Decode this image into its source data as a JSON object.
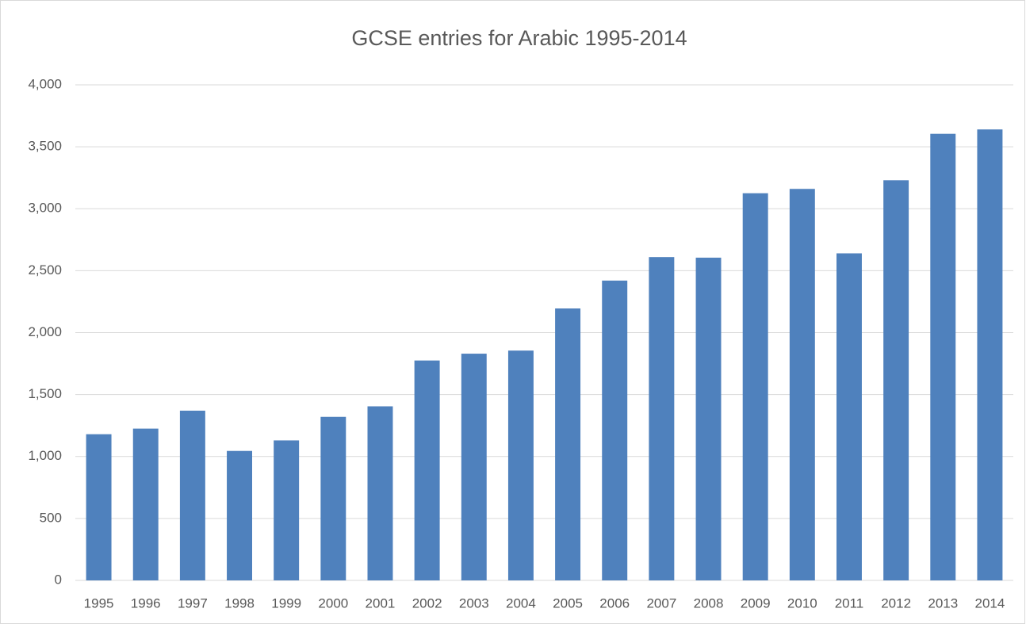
{
  "chart_data": {
    "type": "bar",
    "title": "GCSE entries for Arabic 1995-2014",
    "categories": [
      "1995",
      "1996",
      "1997",
      "1998",
      "1999",
      "2000",
      "2001",
      "2002",
      "2003",
      "2004",
      "2005",
      "2006",
      "2007",
      "2008",
      "2009",
      "2010",
      "2011",
      "2012",
      "2013",
      "2014"
    ],
    "values": [
      1180,
      1225,
      1370,
      1045,
      1130,
      1320,
      1405,
      1775,
      1830,
      1855,
      2195,
      2420,
      2610,
      2605,
      3125,
      3160,
      2640,
      3230,
      3605,
      3640
    ],
    "color": "#4f81bd",
    "ylim": [
      0,
      4000
    ],
    "yticks": [
      0,
      500,
      {
        "value": 1000,
        "label": "1,000"
      },
      {
        "value": 1500,
        "label": "1,500"
      },
      {
        "value": 2000,
        "label": "2,000"
      },
      {
        "value": 2500,
        "label": "2,500"
      },
      {
        "value": 3000,
        "label": "3,000"
      },
      {
        "value": 3500,
        "label": "3,500"
      },
      {
        "value": 4000,
        "label": "4,000"
      }
    ],
    "grid": true
  }
}
